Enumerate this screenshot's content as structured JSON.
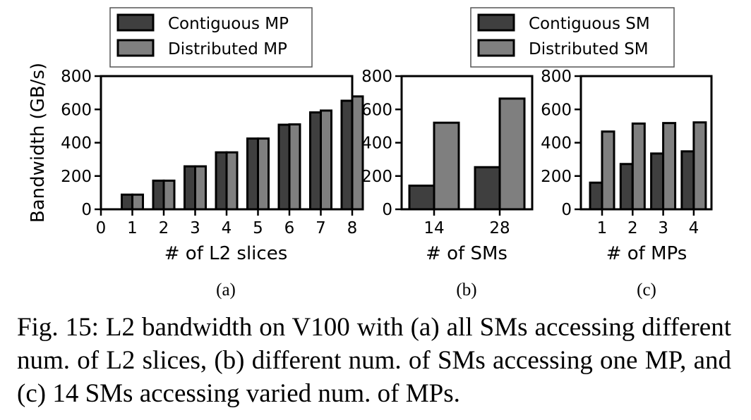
{
  "colors": {
    "contiguous": "#3f3f3f",
    "distributed": "#7f7f7f",
    "edge": "#000000"
  },
  "chart_data": [
    {
      "id": "a",
      "type": "bar",
      "panel_label": "(a)",
      "xlabel": "# of L2 slices",
      "ylabel": "Bandwidth (GB/s)",
      "ylim": [
        0,
        800
      ],
      "xlim": [
        0,
        8
      ],
      "yticks": [
        0,
        200,
        400,
        600,
        800
      ],
      "tick_labels": [
        "0",
        "1",
        "2",
        "3",
        "4",
        "5",
        "6",
        "7",
        "8"
      ],
      "categories": [
        1,
        2,
        3,
        4,
        5,
        6,
        7,
        8
      ],
      "legend": {
        "position": "top",
        "entries": [
          "Contiguous MP",
          "Distributed MP"
        ]
      },
      "series": [
        {
          "name": "Contiguous MP",
          "values": [
            88,
            172,
            258,
            342,
            425,
            508,
            582,
            652
          ]
        },
        {
          "name": "Distributed MP",
          "values": [
            88,
            172,
            258,
            342,
            425,
            510,
            593,
            678
          ]
        }
      ]
    },
    {
      "id": "b",
      "type": "bar",
      "panel_label": "(b)",
      "xlabel": "# of SMs",
      "ylabel": "",
      "ylim": [
        0,
        800
      ],
      "yticks": [
        0,
        200,
        400,
        600,
        800
      ],
      "categories": [
        "14",
        "28"
      ],
      "legend": {
        "position": "top",
        "entries": [
          "Contiguous SM",
          "Distributed SM"
        ]
      },
      "series": [
        {
          "name": "Contiguous SM",
          "values": [
            142,
            253
          ]
        },
        {
          "name": "Distributed SM",
          "values": [
            520,
            665
          ]
        }
      ]
    },
    {
      "id": "c",
      "type": "bar",
      "panel_label": "(c)",
      "xlabel": "# of MPs",
      "ylabel": "",
      "ylim": [
        0,
        800
      ],
      "yticks": [
        0,
        200,
        400,
        600,
        800
      ],
      "categories": [
        "1",
        "2",
        "3",
        "4"
      ],
      "legend": {
        "position": "top",
        "entries": [
          "Contiguous SM",
          "Distributed SM"
        ]
      },
      "series": [
        {
          "name": "Contiguous SM",
          "values": [
            160,
            272,
            335,
            348
          ]
        },
        {
          "name": "Distributed SM",
          "values": [
            467,
            515,
            518,
            522
          ]
        }
      ]
    }
  ],
  "caption": "Fig. 15: L2 bandwidth on V100 with (a) all SMs accessing different num. of L2 slices, (b) different num. of SMs accessing one MP, and (c) 14 SMs accessing varied num. of MPs."
}
